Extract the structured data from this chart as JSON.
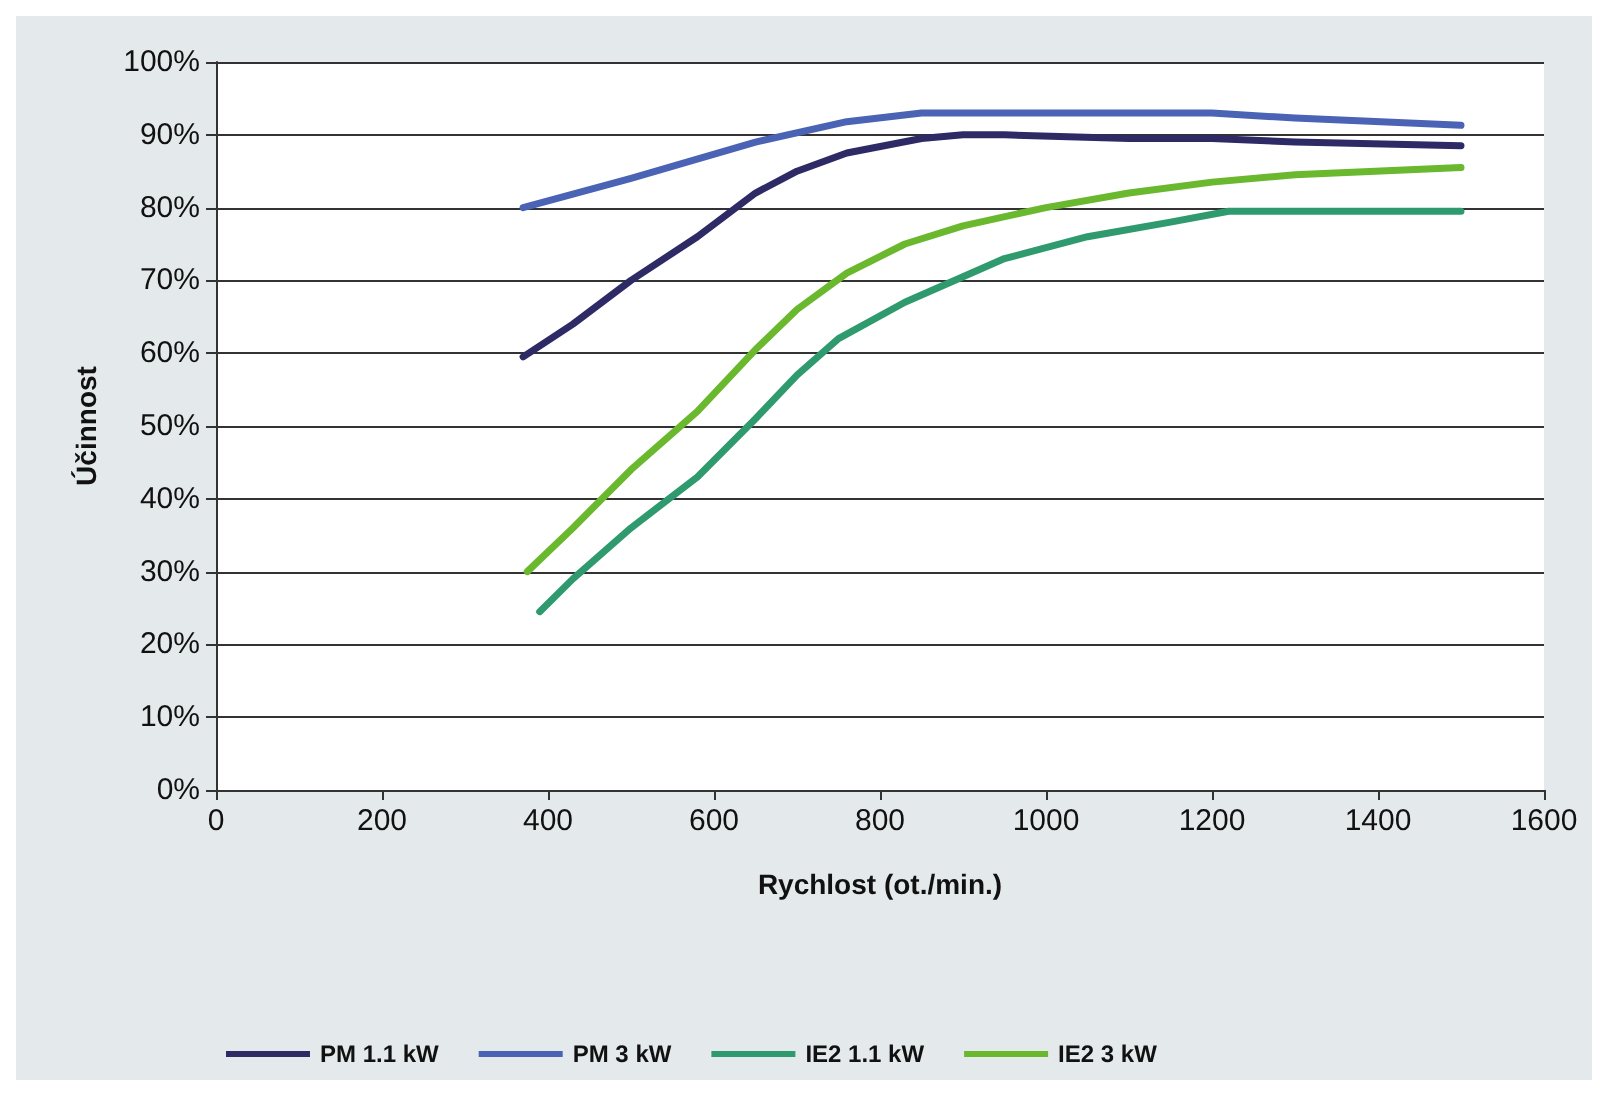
{
  "chart_data": {
    "type": "line",
    "xlabel": "Rychlost (ot./min.)",
    "ylabel": "Účinnost",
    "xlim": [
      0,
      1600
    ],
    "xticks": [
      0,
      200,
      400,
      600,
      800,
      1000,
      1200,
      1400,
      1600
    ],
    "ylim": [
      0,
      100
    ],
    "yticks": [
      {
        "value": 0,
        "label": "0%"
      },
      {
        "value": 10,
        "label": "10%"
      },
      {
        "value": 20,
        "label": "20%"
      },
      {
        "value": 30,
        "label": "30%"
      },
      {
        "value": 40,
        "label": "40%"
      },
      {
        "value": 50,
        "label": "50%"
      },
      {
        "value": 60,
        "label": "60%"
      },
      {
        "value": 70,
        "label": "70%"
      },
      {
        "value": 80,
        "label": "80%"
      },
      {
        "value": 90,
        "label": "90%"
      },
      {
        "value": 100,
        "label": "100%"
      }
    ],
    "grid": "y",
    "legend": "bottom",
    "marker": "none",
    "line_style": "solid",
    "series": [
      {
        "name": "PM 1.1 kW",
        "color": "#2e2a66",
        "x": [
          370,
          430,
          500,
          580,
          650,
          700,
          760,
          850,
          900,
          950,
          1100,
          1200,
          1300,
          1500
        ],
        "values": [
          59.5,
          64,
          70,
          76,
          82,
          85,
          87.5,
          89.5,
          90,
          90,
          89.5,
          89.5,
          89,
          88.5
        ]
      },
      {
        "name": "PM 3 kW",
        "color": "#4a63b4",
        "x": [
          370,
          500,
          650,
          760,
          850,
          1000,
          1200,
          1300,
          1500
        ],
        "values": [
          80,
          84,
          89,
          91.8,
          93,
          93,
          93,
          92.3,
          91.3
        ]
      },
      {
        "name": "IE2 1.1 kW",
        "color": "#2e9a6e",
        "x": [
          390,
          430,
          500,
          580,
          650,
          700,
          750,
          830,
          900,
          950,
          1050,
          1150,
          1220,
          1500
        ],
        "values": [
          24.5,
          29,
          36,
          43,
          51,
          57,
          62,
          67,
          70.5,
          73,
          76,
          78,
          79.5,
          79.5
        ]
      },
      {
        "name": "IE2 3 kW",
        "color": "#6ab82e",
        "x": [
          375,
          430,
          500,
          580,
          650,
          700,
          760,
          830,
          900,
          1000,
          1100,
          1200,
          1300,
          1500
        ],
        "values": [
          30,
          36,
          44,
          52,
          60.5,
          66,
          71,
          75,
          77.5,
          80,
          82,
          83.5,
          84.5,
          85.5
        ]
      }
    ]
  }
}
